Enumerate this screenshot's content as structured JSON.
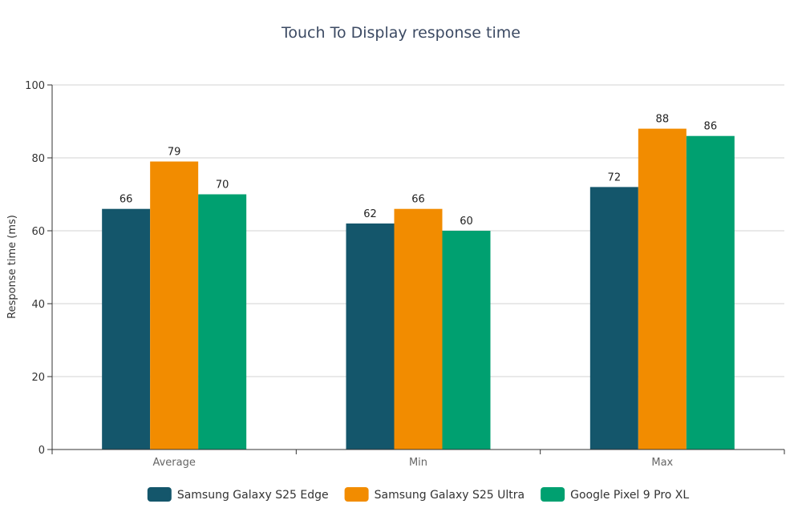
{
  "chart_data": {
    "type": "bar",
    "title": "Touch To Display response time",
    "xlabel": "",
    "ylabel": "Response time (ms)",
    "ylim": [
      0,
      100
    ],
    "yticks": [
      0,
      20,
      40,
      60,
      80,
      100
    ],
    "grid": true,
    "legend_position": "bottom",
    "categories": [
      "Average",
      "Min",
      "Max"
    ],
    "series": [
      {
        "name": "Samsung Galaxy S25 Edge",
        "color": "#14566b",
        "values": [
          66,
          62,
          72
        ]
      },
      {
        "name": "Samsung Galaxy S25 Ultra",
        "color": "#f28c00",
        "values": [
          79,
          66,
          88
        ]
      },
      {
        "name": "Google Pixel 9 Pro XL",
        "color": "#00a070",
        "values": [
          70,
          60,
          86
        ]
      }
    ]
  }
}
